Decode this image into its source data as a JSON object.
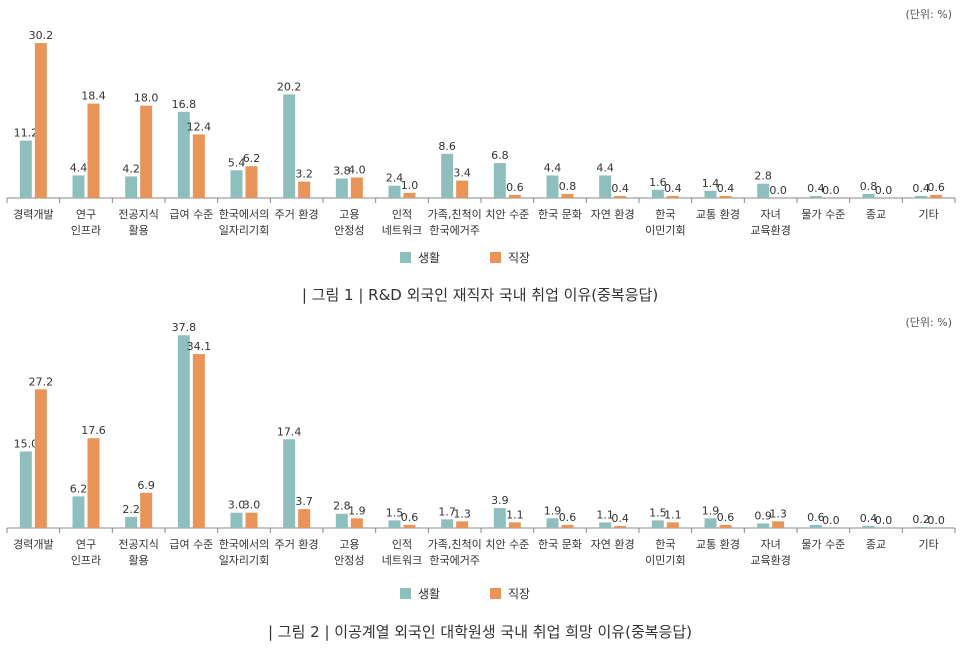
{
  "colors": {
    "life": "#8fbfbd",
    "work": "#e9955a",
    "axis": "#888888"
  },
  "chart_data": [
    {
      "type": "bar",
      "title": "| 그림 1 |  R&D 외국인 재직자 국내 취업 이유(중복응답)",
      "unit": "(단위: %)",
      "categories": [
        [
          "경력개발"
        ],
        [
          "연구",
          "인프라"
        ],
        [
          "전공지식",
          "활용"
        ],
        [
          "급여 수준"
        ],
        [
          "한국에서의",
          "일자리기회"
        ],
        [
          "주거 환경"
        ],
        [
          "고용",
          "안정성"
        ],
        [
          "인적",
          "네트워크"
        ],
        [
          "가족,친척이",
          "한국에거주"
        ],
        [
          "치안 수준"
        ],
        [
          "한국 문화"
        ],
        [
          "자연 환경"
        ],
        [
          "한국",
          "이민기회"
        ],
        [
          "교통 환경"
        ],
        [
          "자녀",
          "교육환경"
        ],
        [
          "물가 수준"
        ],
        [
          "종교"
        ],
        [
          "기타"
        ]
      ],
      "series": [
        {
          "name": "생활",
          "values": [
            11.2,
            4.4,
            4.2,
            16.8,
            5.4,
            20.2,
            3.8,
            2.4,
            8.6,
            6.8,
            4.4,
            4.4,
            1.6,
            1.4,
            2.8,
            0.4,
            0.8,
            0.4
          ]
        },
        {
          "name": "직장",
          "values": [
            30.2,
            18.4,
            18.0,
            12.4,
            6.2,
            3.2,
            4.0,
            1.0,
            3.4,
            0.6,
            0.8,
            0.4,
            0.4,
            0.4,
            0.0,
            0.0,
            0.0,
            0.6
          ]
        }
      ],
      "legend": "bottom-center",
      "grid": false
    },
    {
      "type": "bar",
      "title": "| 그림 2 |  이공계열 외국인 대학원생 국내 취업 희망 이유(중복응답)",
      "unit": "(단위: %)",
      "categories": [
        [
          "경력개발"
        ],
        [
          "연구",
          "인프라"
        ],
        [
          "전공지식",
          "활용"
        ],
        [
          "급여 수준"
        ],
        [
          "한국에서의",
          "일자리기회"
        ],
        [
          "주거 환경"
        ],
        [
          "고용",
          "안정성"
        ],
        [
          "인적",
          "네트워크"
        ],
        [
          "가족,친척이",
          "한국에거주"
        ],
        [
          "치안 수준"
        ],
        [
          "한국 문화"
        ],
        [
          "자연 환경"
        ],
        [
          "한국",
          "이민기회"
        ],
        [
          "교통 환경"
        ],
        [
          "자녀",
          "교육환경"
        ],
        [
          "물가 수준"
        ],
        [
          "종교"
        ],
        [
          "기타"
        ]
      ],
      "series": [
        {
          "name": "생활",
          "values": [
            15.0,
            6.2,
            2.2,
            37.8,
            3.0,
            17.4,
            2.8,
            1.5,
            1.7,
            3.9,
            1.9,
            1.1,
            1.5,
            1.9,
            0.9,
            0.6,
            0.4,
            0.2
          ]
        },
        {
          "name": "직장",
          "values": [
            27.2,
            17.6,
            6.9,
            34.1,
            3.0,
            3.7,
            1.9,
            0.6,
            1.3,
            1.1,
            0.6,
            0.4,
            1.1,
            0.6,
            1.3,
            0.0,
            0.0,
            0.0
          ]
        }
      ],
      "legend": "bottom-center",
      "grid": false
    }
  ]
}
